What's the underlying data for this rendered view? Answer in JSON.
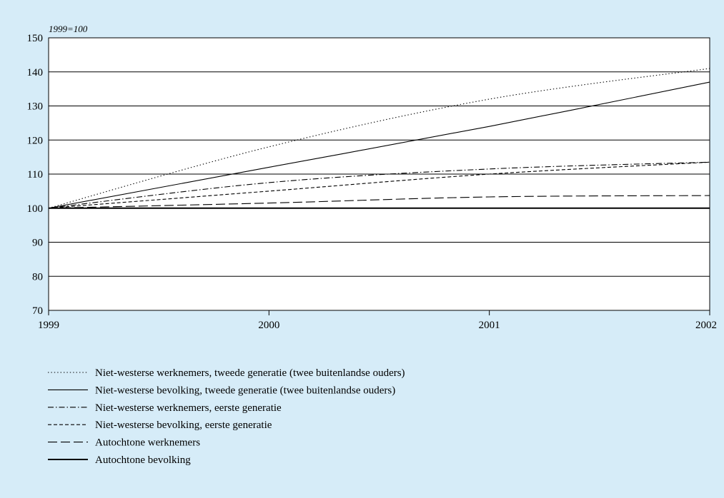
{
  "chart_data": {
    "type": "line",
    "unit_label": "1999=100",
    "x": [
      1999,
      2000,
      2001,
      2002
    ],
    "xlim": [
      1999,
      2002
    ],
    "ylim": [
      70,
      150
    ],
    "yticks": [
      70,
      80,
      90,
      100,
      110,
      120,
      130,
      140,
      150
    ],
    "grid": true,
    "legend_position": "bottom",
    "series": [
      {
        "name": "Niet-westerse werknemers, tweede generatie (twee buitenlandse ouders)",
        "dash": "dotted",
        "values": [
          100,
          118,
          132,
          141
        ]
      },
      {
        "name": "Niet-westerse bevolking, tweede generatie (twee buitenlandse ouders)",
        "dash": "solid-thin",
        "values": [
          100,
          112,
          124,
          137
        ]
      },
      {
        "name": "Niet-westerse werknemers, eerste generatie",
        "dash": "dash-dot",
        "values": [
          100,
          107.5,
          111.5,
          113.5
        ]
      },
      {
        "name": "Niet-westerse bevolking, eerste generatie",
        "dash": "short-dash",
        "values": [
          100,
          105,
          110,
          113.5
        ]
      },
      {
        "name": "Autochtone werknemers",
        "dash": "long-dash",
        "values": [
          100,
          101.5,
          103.3,
          103.7
        ]
      },
      {
        "name": "Autochtone bevolking",
        "dash": "solid-thick",
        "values": [
          100,
          100,
          100,
          100
        ]
      }
    ]
  }
}
